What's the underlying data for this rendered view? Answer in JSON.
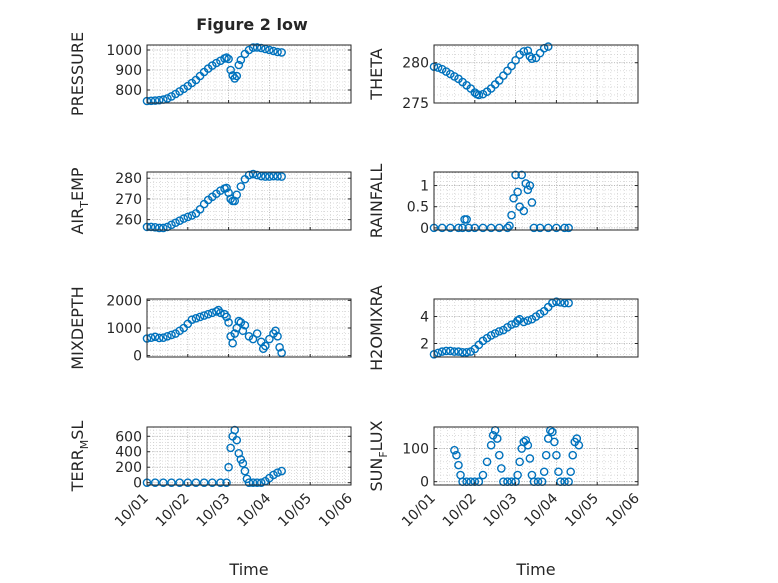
{
  "figure": {
    "title": "Figure 2 low",
    "series_color": "#0072BD"
  },
  "chart_data": [
    {
      "type": "scatter",
      "title": "Figure 2 low",
      "xlabel": "",
      "ylabel": "PRESSURE",
      "ylim": [
        735,
        1025
      ],
      "yticks": [
        800,
        900,
        1000
      ],
      "x_tick_labels": [
        "10/01",
        "10/02",
        "10/03",
        "10/04",
        "10/05",
        "10/06"
      ],
      "xlim": [
        0,
        5
      ],
      "grid": true,
      "points": [
        [
          0,
          745
        ],
        [
          0.1,
          746
        ],
        [
          0.2,
          747
        ],
        [
          0.3,
          749
        ],
        [
          0.4,
          752
        ],
        [
          0.5,
          758
        ],
        [
          0.6,
          768
        ],
        [
          0.7,
          780
        ],
        [
          0.8,
          793
        ],
        [
          0.9,
          806
        ],
        [
          1.0,
          820
        ],
        [
          1.1,
          835
        ],
        [
          1.2,
          850
        ],
        [
          1.3,
          870
        ],
        [
          1.4,
          890
        ],
        [
          1.5,
          907
        ],
        [
          1.6,
          922
        ],
        [
          1.7,
          935
        ],
        [
          1.8,
          946
        ],
        [
          1.9,
          958
        ],
        [
          1.95,
          962
        ],
        [
          2.0,
          955
        ],
        [
          2.05,
          900
        ],
        [
          2.1,
          873
        ],
        [
          2.15,
          858
        ],
        [
          2.2,
          870
        ],
        [
          2.25,
          925
        ],
        [
          2.3,
          950
        ],
        [
          2.4,
          980
        ],
        [
          2.5,
          1000
        ],
        [
          2.6,
          1012
        ],
        [
          2.7,
          1013
        ],
        [
          2.8,
          1010
        ],
        [
          2.9,
          1005
        ],
        [
          3.0,
          1000
        ],
        [
          3.1,
          995
        ],
        [
          3.2,
          990
        ],
        [
          3.3,
          988
        ]
      ]
    },
    {
      "type": "scatter",
      "xlabel": "",
      "ylabel": "THETA",
      "ylim": [
        275,
        282.2
      ],
      "yticks": [
        275,
        280
      ],
      "x_tick_labels": [
        "10/01",
        "10/02",
        "10/03",
        "10/04",
        "10/05",
        "10/06"
      ],
      "xlim": [
        0,
        5
      ],
      "grid": true,
      "points": [
        [
          0,
          279.5
        ],
        [
          0.1,
          279.4
        ],
        [
          0.2,
          279.2
        ],
        [
          0.3,
          278.9
        ],
        [
          0.4,
          278.6
        ],
        [
          0.5,
          278.3
        ],
        [
          0.6,
          278.0
        ],
        [
          0.7,
          277.6
        ],
        [
          0.8,
          277.2
        ],
        [
          0.9,
          276.8
        ],
        [
          1.0,
          276.3
        ],
        [
          1.05,
          276.1
        ],
        [
          1.1,
          276.0
        ],
        [
          1.2,
          276.1
        ],
        [
          1.3,
          276.4
        ],
        [
          1.4,
          276.8
        ],
        [
          1.5,
          277.3
        ],
        [
          1.6,
          277.8
        ],
        [
          1.7,
          278.4
        ],
        [
          1.8,
          279.0
        ],
        [
          1.9,
          279.6
        ],
        [
          2.0,
          280.3
        ],
        [
          2.1,
          281.0
        ],
        [
          2.2,
          281.4
        ],
        [
          2.3,
          281.5
        ],
        [
          2.35,
          280.8
        ],
        [
          2.4,
          280.5
        ],
        [
          2.5,
          280.6
        ],
        [
          2.6,
          281.2
        ],
        [
          2.7,
          281.8
        ],
        [
          2.8,
          282.0
        ]
      ]
    },
    {
      "type": "scatter",
      "xlabel": "",
      "ylabel": "AIR_TEMP",
      "ylim": [
        255,
        283
      ],
      "yticks": [
        260,
        270,
        280
      ],
      "x_tick_labels": [
        "10/01",
        "10/02",
        "10/03",
        "10/04",
        "10/05",
        "10/06"
      ],
      "xlim": [
        0,
        5
      ],
      "grid": true,
      "points": [
        [
          0,
          256.5
        ],
        [
          0.1,
          256.5
        ],
        [
          0.2,
          256.3
        ],
        [
          0.3,
          256.0
        ],
        [
          0.4,
          256.0
        ],
        [
          0.5,
          256.5
        ],
        [
          0.6,
          257.5
        ],
        [
          0.7,
          258.5
        ],
        [
          0.8,
          259.5
        ],
        [
          0.9,
          260.5
        ],
        [
          1.0,
          261.3
        ],
        [
          1.1,
          262.0
        ],
        [
          1.2,
          263.0
        ],
        [
          1.3,
          265.0
        ],
        [
          1.4,
          267.5
        ],
        [
          1.5,
          269.5
        ],
        [
          1.6,
          271.0
        ],
        [
          1.7,
          272.5
        ],
        [
          1.8,
          274.0
        ],
        [
          1.9,
          275.0
        ],
        [
          1.95,
          275.3
        ],
        [
          2.0,
          273.0
        ],
        [
          2.05,
          270.0
        ],
        [
          2.1,
          269.0
        ],
        [
          2.15,
          269.0
        ],
        [
          2.2,
          272.0
        ],
        [
          2.3,
          276.0
        ],
        [
          2.4,
          279.5
        ],
        [
          2.5,
          281.5
        ],
        [
          2.6,
          282.0
        ],
        [
          2.7,
          281.5
        ],
        [
          2.8,
          281.0
        ],
        [
          2.9,
          280.8
        ],
        [
          3.0,
          280.8
        ],
        [
          3.1,
          281.0
        ],
        [
          3.2,
          280.9
        ],
        [
          3.3,
          280.8
        ]
      ]
    },
    {
      "type": "scatter",
      "xlabel": "",
      "ylabel": "RAINFALL",
      "ylim": [
        -0.05,
        1.32
      ],
      "yticks": [
        0,
        0.5,
        1
      ],
      "x_tick_labels": [
        "10/01",
        "10/02",
        "10/03",
        "10/04",
        "10/05",
        "10/06"
      ],
      "xlim": [
        0,
        5
      ],
      "grid": true,
      "points": [
        [
          0,
          0
        ],
        [
          0.2,
          0
        ],
        [
          0.4,
          0
        ],
        [
          0.6,
          0
        ],
        [
          0.7,
          0
        ],
        [
          0.75,
          0.2
        ],
        [
          0.8,
          0.2
        ],
        [
          0.85,
          0
        ],
        [
          1.0,
          0
        ],
        [
          1.2,
          0
        ],
        [
          1.4,
          0
        ],
        [
          1.6,
          0
        ],
        [
          1.8,
          0
        ],
        [
          1.85,
          0.05
        ],
        [
          1.9,
          0.3
        ],
        [
          1.95,
          0.7
        ],
        [
          2.0,
          1.25
        ],
        [
          2.05,
          0.85
        ],
        [
          2.1,
          0.5
        ],
        [
          2.15,
          1.25
        ],
        [
          2.2,
          0.4
        ],
        [
          2.25,
          1.05
        ],
        [
          2.3,
          0.9
        ],
        [
          2.35,
          1.0
        ],
        [
          2.4,
          0.6
        ],
        [
          2.45,
          0
        ],
        [
          2.6,
          0
        ],
        [
          2.8,
          0
        ],
        [
          3.0,
          0
        ],
        [
          3.2,
          0
        ],
        [
          3.3,
          0
        ]
      ]
    },
    {
      "type": "scatter",
      "xlabel": "",
      "ylabel": "MIXDEPTH",
      "ylim": [
        -50,
        2050
      ],
      "yticks": [
        0,
        1000,
        2000
      ],
      "x_tick_labels": [
        "10/01",
        "10/02",
        "10/03",
        "10/04",
        "10/05",
        "10/06"
      ],
      "xlim": [
        0,
        5
      ],
      "grid": true,
      "points": [
        [
          0,
          620
        ],
        [
          0.1,
          650
        ],
        [
          0.2,
          680
        ],
        [
          0.3,
          640
        ],
        [
          0.4,
          650
        ],
        [
          0.5,
          700
        ],
        [
          0.6,
          750
        ],
        [
          0.7,
          800
        ],
        [
          0.8,
          900
        ],
        [
          0.9,
          1000
        ],
        [
          1.0,
          1150
        ],
        [
          1.1,
          1300
        ],
        [
          1.2,
          1350
        ],
        [
          1.3,
          1400
        ],
        [
          1.4,
          1450
        ],
        [
          1.5,
          1500
        ],
        [
          1.6,
          1550
        ],
        [
          1.7,
          1600
        ],
        [
          1.75,
          1650
        ],
        [
          1.8,
          1550
        ],
        [
          1.9,
          1500
        ],
        [
          1.95,
          1400
        ],
        [
          2.0,
          1200
        ],
        [
          2.05,
          700
        ],
        [
          2.1,
          450
        ],
        [
          2.15,
          800
        ],
        [
          2.2,
          1000
        ],
        [
          2.25,
          1250
        ],
        [
          2.3,
          1200
        ],
        [
          2.35,
          900
        ],
        [
          2.4,
          1100
        ],
        [
          2.5,
          700
        ],
        [
          2.6,
          600
        ],
        [
          2.7,
          800
        ],
        [
          2.8,
          500
        ],
        [
          2.85,
          250
        ],
        [
          2.9,
          350
        ],
        [
          3.0,
          600
        ],
        [
          3.1,
          800
        ],
        [
          3.15,
          900
        ],
        [
          3.2,
          700
        ],
        [
          3.25,
          300
        ],
        [
          3.3,
          100
        ]
      ]
    },
    {
      "type": "scatter",
      "xlabel": "",
      "ylabel": "H2OMIXRA",
      "ylim": [
        1.0,
        5.3
      ],
      "yticks": [
        2,
        4
      ],
      "x_tick_labels": [
        "10/01",
        "10/02",
        "10/03",
        "10/04",
        "10/05",
        "10/06"
      ],
      "xlim": [
        0,
        5
      ],
      "grid": true,
      "points": [
        [
          0,
          1.2
        ],
        [
          0.1,
          1.3
        ],
        [
          0.2,
          1.4
        ],
        [
          0.3,
          1.45
        ],
        [
          0.4,
          1.45
        ],
        [
          0.5,
          1.4
        ],
        [
          0.6,
          1.4
        ],
        [
          0.7,
          1.35
        ],
        [
          0.8,
          1.35
        ],
        [
          0.9,
          1.4
        ],
        [
          1.0,
          1.6
        ],
        [
          1.1,
          1.9
        ],
        [
          1.2,
          2.2
        ],
        [
          1.3,
          2.4
        ],
        [
          1.4,
          2.6
        ],
        [
          1.5,
          2.75
        ],
        [
          1.6,
          2.9
        ],
        [
          1.7,
          3.0
        ],
        [
          1.8,
          3.2
        ],
        [
          1.9,
          3.4
        ],
        [
          2.0,
          3.5
        ],
        [
          2.05,
          3.7
        ],
        [
          2.1,
          3.8
        ],
        [
          2.2,
          3.6
        ],
        [
          2.3,
          3.7
        ],
        [
          2.4,
          3.8
        ],
        [
          2.5,
          4.0
        ],
        [
          2.6,
          4.2
        ],
        [
          2.7,
          4.4
        ],
        [
          2.8,
          4.7
        ],
        [
          2.9,
          5.0
        ],
        [
          3.0,
          5.1
        ],
        [
          3.1,
          5.05
        ],
        [
          3.2,
          5.0
        ],
        [
          3.3,
          5.0
        ]
      ]
    },
    {
      "type": "scatter",
      "xlabel": "Time",
      "ylabel": "TERR_MSL",
      "ylim": [
        -30,
        720
      ],
      "yticks": [
        0,
        200,
        400,
        600
      ],
      "x_tick_labels": [
        "10/01",
        "10/02",
        "10/03",
        "10/04",
        "10/05",
        "10/06"
      ],
      "xlim": [
        0,
        5
      ],
      "grid": true,
      "points": [
        [
          0,
          0
        ],
        [
          0.2,
          0
        ],
        [
          0.4,
          0
        ],
        [
          0.6,
          0
        ],
        [
          0.8,
          0
        ],
        [
          1.0,
          0
        ],
        [
          1.2,
          0
        ],
        [
          1.4,
          0
        ],
        [
          1.6,
          0
        ],
        [
          1.8,
          0
        ],
        [
          1.95,
          0
        ],
        [
          2.0,
          200
        ],
        [
          2.05,
          450
        ],
        [
          2.1,
          600
        ],
        [
          2.15,
          680
        ],
        [
          2.2,
          550
        ],
        [
          2.25,
          380
        ],
        [
          2.3,
          300
        ],
        [
          2.35,
          250
        ],
        [
          2.4,
          150
        ],
        [
          2.45,
          50
        ],
        [
          2.5,
          0
        ],
        [
          2.6,
          0
        ],
        [
          2.7,
          0
        ],
        [
          2.8,
          0
        ],
        [
          2.9,
          20
        ],
        [
          3.0,
          60
        ],
        [
          3.1,
          100
        ],
        [
          3.2,
          130
        ],
        [
          3.3,
          150
        ]
      ]
    },
    {
      "type": "scatter",
      "xlabel": "Time",
      "ylabel": "SUN_FLUX",
      "ylim": [
        -10,
        165
      ],
      "yticks": [
        0,
        100
      ],
      "x_tick_labels": [
        "10/01",
        "10/02",
        "10/03",
        "10/04",
        "10/05",
        "10/06"
      ],
      "xlim": [
        0,
        5
      ],
      "grid": true,
      "points": [
        [
          0.5,
          95
        ],
        [
          0.55,
          80
        ],
        [
          0.6,
          50
        ],
        [
          0.65,
          20
        ],
        [
          0.7,
          0
        ],
        [
          0.8,
          0
        ],
        [
          0.9,
          0
        ],
        [
          1.0,
          0
        ],
        [
          1.1,
          0
        ],
        [
          1.2,
          20
        ],
        [
          1.3,
          60
        ],
        [
          1.4,
          110
        ],
        [
          1.45,
          140
        ],
        [
          1.5,
          155
        ],
        [
          1.55,
          130
        ],
        [
          1.6,
          80
        ],
        [
          1.65,
          40
        ],
        [
          1.7,
          0
        ],
        [
          1.8,
          0
        ],
        [
          1.9,
          0
        ],
        [
          2.0,
          0
        ],
        [
          2.05,
          20
        ],
        [
          2.1,
          60
        ],
        [
          2.15,
          100
        ],
        [
          2.2,
          120
        ],
        [
          2.25,
          125
        ],
        [
          2.3,
          110
        ],
        [
          2.35,
          70
        ],
        [
          2.4,
          20
        ],
        [
          2.45,
          0
        ],
        [
          2.55,
          0
        ],
        [
          2.65,
          0
        ],
        [
          2.7,
          30
        ],
        [
          2.75,
          80
        ],
        [
          2.8,
          130
        ],
        [
          2.85,
          155
        ],
        [
          2.9,
          150
        ],
        [
          2.95,
          120
        ],
        [
          3.0,
          80
        ],
        [
          3.05,
          30
        ],
        [
          3.1,
          0
        ],
        [
          3.2,
          0
        ],
        [
          3.3,
          0
        ],
        [
          3.35,
          30
        ],
        [
          3.4,
          80
        ],
        [
          3.45,
          120
        ],
        [
          3.5,
          130
        ],
        [
          3.55,
          110
        ]
      ]
    }
  ]
}
